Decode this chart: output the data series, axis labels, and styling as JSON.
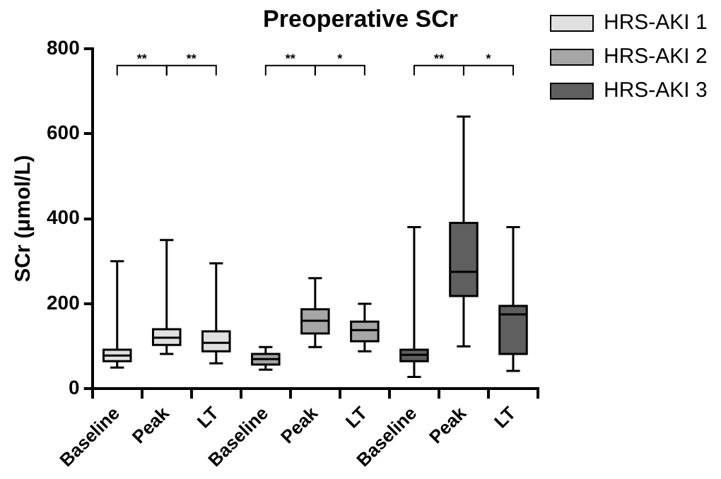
{
  "chart_data": {
    "type": "box",
    "title": "Preoperative SCr",
    "ylabel": "SCr (μmol/L)",
    "categories": [
      "Baseline",
      "Peak",
      "LT",
      "Baseline",
      "Peak",
      "LT",
      "Baseline",
      "Peak",
      "LT"
    ],
    "series": [
      {
        "name": "HRS-AKI 1",
        "color": "#e0e0e0",
        "boxes": [
          {
            "low": 50,
            "q1": 65,
            "median": 78,
            "q3": 92,
            "high": 300
          },
          {
            "low": 82,
            "q1": 103,
            "median": 120,
            "q3": 140,
            "high": 350
          },
          {
            "low": 60,
            "q1": 88,
            "median": 108,
            "q3": 135,
            "high": 295
          },
          null,
          null,
          null,
          null,
          null,
          null
        ]
      },
      {
        "name": "HRS-AKI 2",
        "color": "#a6a6a6",
        "boxes": [
          null,
          null,
          null,
          {
            "low": 45,
            "q1": 57,
            "median": 70,
            "q3": 82,
            "high": 98
          },
          {
            "low": 98,
            "q1": 130,
            "median": 160,
            "q3": 187,
            "high": 260
          },
          {
            "low": 88,
            "q1": 112,
            "median": 138,
            "q3": 158,
            "high": 200
          },
          null,
          null,
          null
        ]
      },
      {
        "name": "HRS-AKI 3",
        "color": "#5f5f5f",
        "boxes": [
          null,
          null,
          null,
          null,
          null,
          null,
          {
            "low": 28,
            "q1": 65,
            "median": 80,
            "q3": 92,
            "high": 380
          },
          {
            "low": 100,
            "q1": 218,
            "median": 275,
            "q3": 390,
            "high": 640
          },
          {
            "low": 42,
            "q1": 82,
            "median": 175,
            "q3": 195,
            "high": 380
          }
        ]
      }
    ],
    "ylim": [
      0,
      800
    ],
    "yticks": [
      0,
      200,
      400,
      600,
      800
    ],
    "grid": false,
    "legend": "top right",
    "annotations": [
      "**",
      "**",
      "**",
      "*",
      "**",
      "*"
    ]
  }
}
